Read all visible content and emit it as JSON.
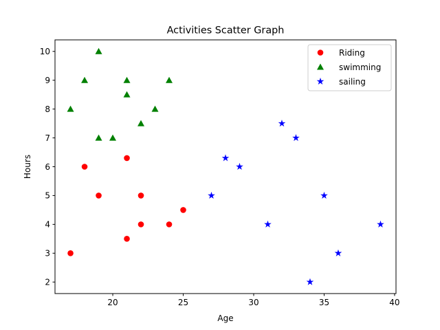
{
  "chart_data": {
    "type": "scatter",
    "title": "Activities Scatter Graph",
    "xlabel": "Age",
    "ylabel": "Hours",
    "xlim": [
      15.9,
      40.1
    ],
    "ylim": [
      1.6,
      10.4
    ],
    "xticks": [
      20,
      25,
      30,
      35,
      40
    ],
    "yticks": [
      2,
      3,
      4,
      5,
      6,
      7,
      8,
      9,
      10
    ],
    "grid": false,
    "legend_position": "top-right",
    "series": [
      {
        "name": "Riding",
        "color": "#ff0000",
        "marker": "circle",
        "points": [
          [
            17,
            3
          ],
          [
            18,
            6
          ],
          [
            19,
            5
          ],
          [
            21,
            6.3
          ],
          [
            21,
            3.5
          ],
          [
            22,
            5
          ],
          [
            22,
            4
          ],
          [
            24,
            4
          ],
          [
            25,
            4.5
          ]
        ]
      },
      {
        "name": "swimming",
        "color": "#008000",
        "marker": "triangle",
        "points": [
          [
            17,
            8
          ],
          [
            18,
            9
          ],
          [
            19,
            10
          ],
          [
            19,
            7
          ],
          [
            20,
            7
          ],
          [
            21,
            9
          ],
          [
            21,
            8.5
          ],
          [
            22,
            7.5
          ],
          [
            23,
            8
          ],
          [
            24,
            9
          ]
        ]
      },
      {
        "name": "sailing",
        "color": "#0000ff",
        "marker": "star",
        "points": [
          [
            27,
            5
          ],
          [
            28,
            6.3
          ],
          [
            29,
            6
          ],
          [
            31,
            4
          ],
          [
            32,
            7.5
          ],
          [
            33,
            7
          ],
          [
            34,
            2
          ],
          [
            35,
            5
          ],
          [
            36,
            3
          ],
          [
            39,
            4
          ]
        ]
      }
    ]
  }
}
